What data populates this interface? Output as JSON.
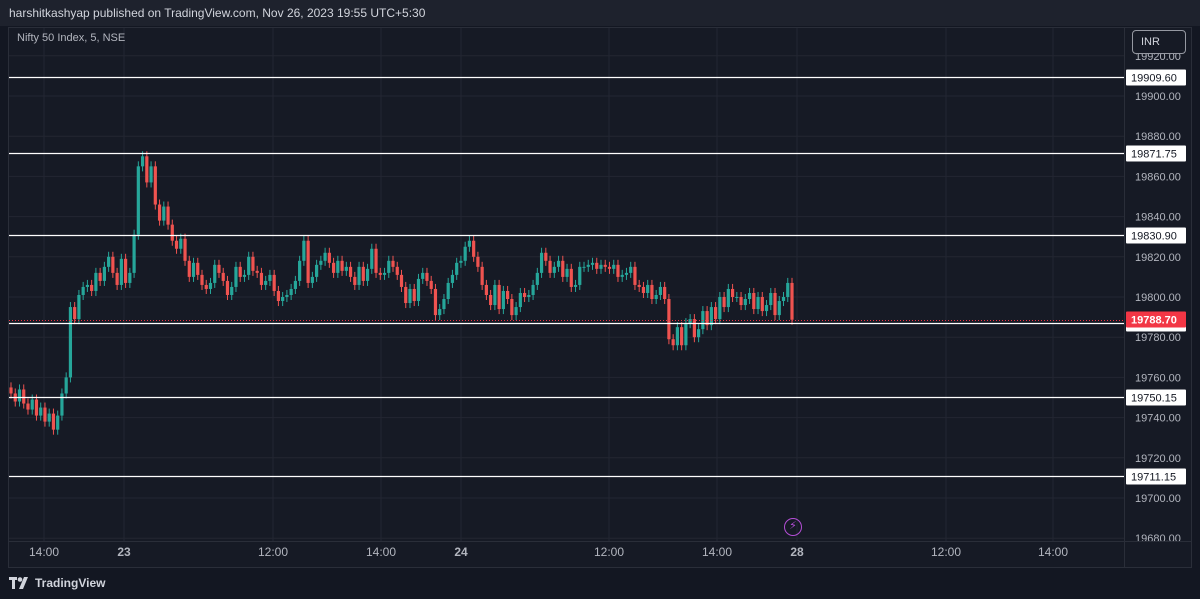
{
  "header": {
    "publish_text": "harshitkashyap published on TradingView.com, Nov 26, 2023 19:55 UTC+5:30"
  },
  "symbol": {
    "label": "Nifty 50 Index, 5, NSE"
  },
  "currency": {
    "label": "INR"
  },
  "brand": {
    "name": "TradingView",
    "icon": "tradingview-logo-icon"
  },
  "events_icon": {
    "icon": "lightning-icon",
    "glyph": "⚡",
    "color": "#b44ed6"
  },
  "colors": {
    "background": "#161a25",
    "grid": "#232632",
    "up": "#26a69a",
    "down": "#ef5350",
    "level_line": "#ffffff",
    "last_price": "#f23645",
    "axis_text": "#b2b5be"
  },
  "chart_data": {
    "type": "candlestick",
    "title": "Nifty 50 Index, 5, NSE",
    "y_axis": {
      "ylim": [
        19680,
        19925
      ],
      "ticks": [
        "19920.00",
        "19900.00",
        "19880.00",
        "19860.00",
        "19840.00",
        "19820.00",
        "19800.00",
        "19780.00",
        "19760.00",
        "19740.00",
        "19720.00",
        "19700.00",
        "19680.00"
      ]
    },
    "x_axis": {
      "ticks": [
        "14:00",
        "23",
        "12:00",
        "14:00",
        "24",
        "12:00",
        "14:00",
        "28",
        "12:00",
        "14:00"
      ]
    },
    "horizontal_levels": [
      {
        "label": "19909.60",
        "value": 19909.6
      },
      {
        "label": "19871.75",
        "value": 19871.75
      },
      {
        "label": "19830.90",
        "value": 19830.9
      },
      {
        "label": "19787.10",
        "value": 19787.1
      },
      {
        "label": "19750.15",
        "value": 19750.15
      },
      {
        "label": "19711.15",
        "value": 19711.15
      }
    ],
    "last_price": {
      "label": "19788.70",
      "value": 19788.7
    },
    "candles_close": [
      19752,
      19748,
      19754,
      19747,
      19744,
      19749,
      19741,
      19745,
      19738,
      19742,
      19734,
      19741,
      19752,
      19760,
      19795,
      19789,
      19801,
      19805,
      19806,
      19803,
      19812,
      19808,
      19815,
      19820,
      19812,
      19806,
      19819,
      19807,
      19812,
      19831,
      19865,
      19870,
      19857,
      19865,
      19846,
      19838,
      19845,
      19836,
      19828,
      19824,
      19829,
      19818,
      19810,
      19817,
      19811,
      19806,
      19804,
      19807,
      19816,
      19812,
      19808,
      19801,
      19805,
      19815,
      19810,
      19811,
      19820,
      19813,
      19812,
      19806,
      19808,
      19811,
      19803,
      19798,
      19800,
      19801,
      19804,
      19808,
      19818,
      19828,
      19807,
      19810,
      19816,
      19818,
      19822,
      19817,
      19812,
      19818,
      19813,
      19815,
      19810,
      19806,
      19815,
      19808,
      19814,
      19824,
      19812,
      19811,
      19812,
      19818,
      19815,
      19811,
      19805,
      19797,
      19804,
      19798,
      19809,
      19812,
      19808,
      19804,
      19791,
      19794,
      19799,
      19807,
      19811,
      19817,
      19818,
      19825,
      19828,
      19820,
      19815,
      19806,
      19801,
      19796,
      19806,
      19794,
      19803,
      19799,
      19791,
      19795,
      19802,
      19800,
      19801,
      19806,
      19812,
      19822,
      19818,
      19812,
      19815,
      19818,
      19810,
      19814,
      19805,
      19806,
      19815,
      19815,
      19816,
      19817,
      19814,
      19816,
      19815,
      19814,
      19816,
      19810,
      19811,
      19812,
      19815,
      19806,
      19805,
      19802,
      19806,
      19799,
      19801,
      19805,
      19799,
      19779,
      19776,
      19785,
      19776,
      19787,
      19789,
      19780,
      19784,
      19793,
      19786,
      19795,
      19789,
      19800,
      19795,
      19804,
      19800,
      19800,
      19796,
      19799,
      19802,
      19794,
      19800,
      19793,
      19796,
      19802,
      19791,
      19798,
      19800,
      19807,
      19788.7
    ]
  }
}
